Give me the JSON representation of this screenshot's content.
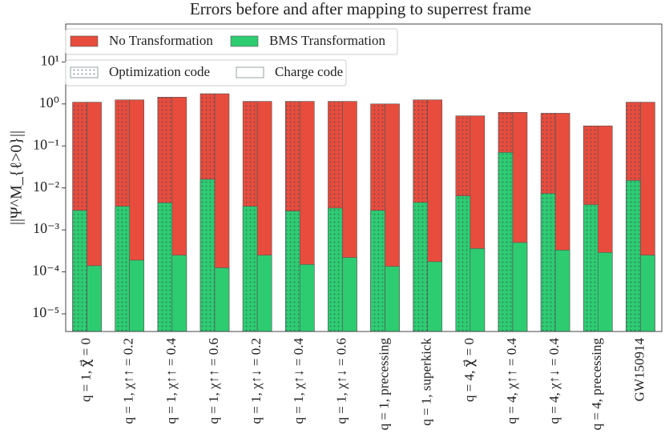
{
  "chart_data": {
    "type": "bar",
    "title": "Errors before and after mapping to superrest frame",
    "y_label": "||Ψ^M_{ℓ>0}||",
    "y_log": true,
    "ylim": [
      3.8e-06,
      80
    ],
    "yticks": [
      {
        "value": 1e-05,
        "label": "10⁻⁵"
      },
      {
        "value": 0.0001,
        "label": "10⁻⁴"
      },
      {
        "value": 0.001,
        "label": "10⁻³"
      },
      {
        "value": 0.01,
        "label": "10⁻²"
      },
      {
        "value": 0.1,
        "label": "10⁻¹"
      },
      {
        "value": 1,
        "label": "10⁰"
      },
      {
        "value": 10,
        "label": "10¹"
      }
    ],
    "categories": [
      "q = 1, χ⃗ = 0",
      "q = 1, χ↑↑ = 0.2",
      "q = 1, χ↑↑ = 0.4",
      "q = 1, χ↑↑ = 0.6",
      "q = 1, χ↑↓ = 0.2",
      "q = 1, χ↑↓ = 0.4",
      "q = 1, χ↑↓ = 0.6",
      "q = 1, precessing",
      "q = 1, superkick",
      "q = 4, χ⃗ = 0",
      "q = 4, χ↑↑ = 0.4",
      "q = 4, χ↑↓ = 0.4",
      "q = 4, precessing",
      "GW150914"
    ],
    "series": [
      {
        "name": "No Transformation",
        "color": "#e74c3c",
        "optimization": [
          1.1,
          1.25,
          1.45,
          1.75,
          1.15,
          1.15,
          1.15,
          1.0,
          1.25,
          0.52,
          0.63,
          0.6,
          0.3,
          1.1
        ],
        "charge": [
          1.1,
          1.25,
          1.45,
          1.75,
          1.15,
          1.15,
          1.15,
          1.0,
          1.25,
          0.52,
          0.63,
          0.6,
          0.3,
          1.1
        ]
      },
      {
        "name": "BMS Transformation",
        "color": "#2ecc71",
        "optimization": [
          0.0029,
          0.00365,
          0.0044,
          0.016,
          0.00365,
          0.0028,
          0.0033,
          0.0029,
          0.0045,
          0.00645,
          0.07,
          0.0074,
          0.004,
          0.015
        ],
        "charge": [
          0.00014,
          0.00019,
          0.00025,
          0.000125,
          0.00025,
          0.00015,
          0.00022,
          0.000135,
          0.000175,
          0.00036,
          0.0005,
          0.00033,
          0.00029,
          0.00025
        ]
      }
    ],
    "codes": [
      {
        "name": "Optimization code",
        "hatch": "dots"
      },
      {
        "name": "Charge code",
        "hatch": "none"
      }
    ]
  }
}
